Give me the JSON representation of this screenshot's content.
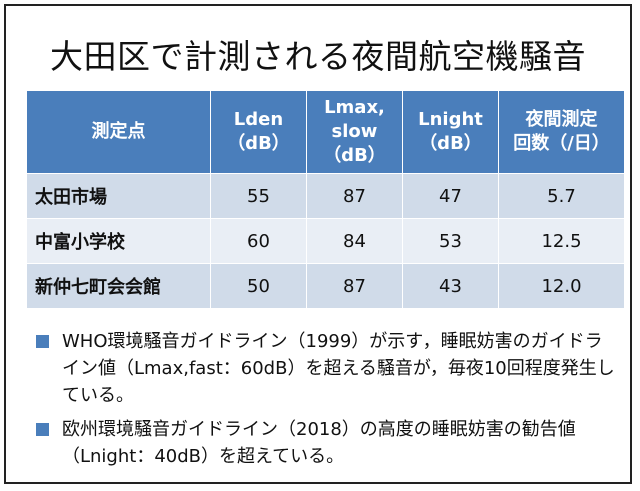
{
  "title": "大田区で計測される夜間航空機騒音",
  "table": {
    "headers": [
      [
        "測定点"
      ],
      [
        "Lden",
        "（dB）"
      ],
      [
        "Lmax,",
        "slow",
        "（dB）"
      ],
      [
        "Lnight",
        "（dB）"
      ],
      [
        "夜間測定",
        "回数（/日）"
      ]
    ],
    "rows": [
      [
        "太田市場",
        "55",
        "87",
        "47",
        "5.7"
      ],
      [
        "中富小学校",
        "60",
        "84",
        "53",
        "12.5"
      ],
      [
        "新仲七町会会館",
        "50",
        "87",
        "43",
        "12.0"
      ]
    ]
  },
  "notes": [
    "WHO環境騒音ガイドライン（1999）が示す，睡眠妨害のガイドライン値（Lmax,fast：60dB）を超える騒音が，毎夜10回程度発生している。",
    "欧州環境騒音ガイドライン（2018）の高度の睡眠妨害の勧告値（Lnight：40dB）を超えている。"
  ],
  "colors": {
    "header_bg": "#4a7ebb",
    "row_band_dark": "#d0dbe9",
    "row_band_light": "#e9eef5",
    "bullet": "#4a7ebb"
  }
}
